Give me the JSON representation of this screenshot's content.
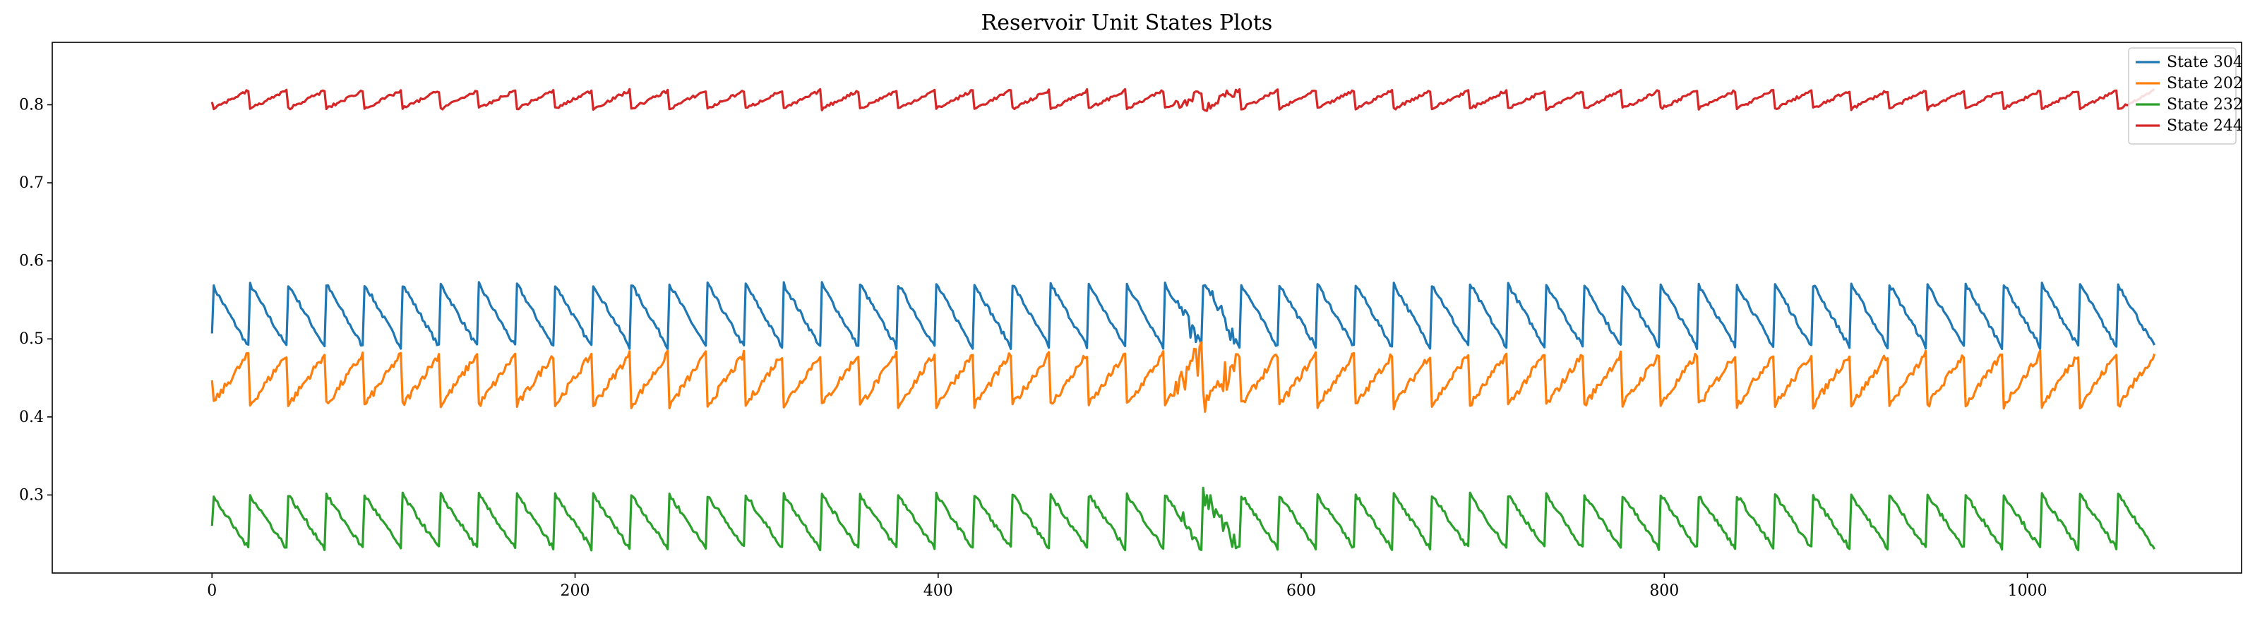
{
  "chart_data": {
    "type": "line",
    "title": "Reservoir Unit States Plots",
    "xlabel": "",
    "ylabel": "",
    "xlim": [
      -88,
      1118
    ],
    "ylim": [
      0.2,
      0.88
    ],
    "xticks": [
      0,
      200,
      400,
      600,
      800,
      1000
    ],
    "yticks": [
      0.3,
      0.4,
      0.5,
      0.6,
      0.7,
      0.8
    ],
    "grid": false,
    "legend_position": "top-right",
    "period": 21,
    "n_points": 1071,
    "series": [
      {
        "name": "State 304",
        "color": "#1f77b4",
        "start": 0.51,
        "high": 0.57,
        "low": 0.49,
        "shape": "saw-down",
        "noise": 0.003
      },
      {
        "name": "State 202",
        "color": "#ff7f0e",
        "start": 0.45,
        "high": 0.48,
        "low": 0.415,
        "shape": "saw-up",
        "noise": 0.005
      },
      {
        "name": "State 232",
        "color": "#2ca02c",
        "start": 0.26,
        "high": 0.3,
        "low": 0.232,
        "shape": "saw-down",
        "noise": 0.003
      },
      {
        "name": "State 244",
        "color": "#d62728",
        "start": 0.805,
        "high": 0.818,
        "low": 0.795,
        "shape": "saw-up",
        "noise": 0.002
      }
    ]
  }
}
